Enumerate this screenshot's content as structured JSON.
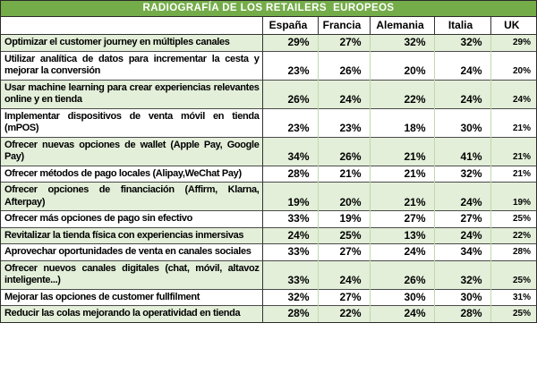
{
  "title": "RADIOGRAFÍA DE LOS RETAILERS  EUROPEOS",
  "colors": {
    "title_bar_bg": "#74AC49",
    "title_text": "#FFFFFF",
    "band_green": "#E3EFD9",
    "row_white": "#FFFFFF",
    "grid_dark": "#4A4A4A",
    "grid_dark_strong": "#333333",
    "grid_light": "#BFD9A9",
    "outer_border": "#2B2B2B",
    "header_text": "#000000",
    "cell_text": "#000000"
  },
  "table": {
    "columns": [
      "España",
      "Francia",
      "Alemania",
      "Italia",
      "UK"
    ],
    "rows": [
      {
        "label": "Optimizar el customer journey en múltiples canales",
        "values": [
          "29%",
          "27%",
          "32%",
          "32%",
          "29%"
        ]
      },
      {
        "label": "Utilizar analítica de datos para incrementar la cesta y mejorar la conversión",
        "values": [
          "23%",
          "26%",
          "20%",
          "24%",
          "20%"
        ]
      },
      {
        "label": "Usar machine learning para crear experiencias relevantes online y en tienda",
        "values": [
          "26%",
          "24%",
          "22%",
          "24%",
          "24%"
        ]
      },
      {
        "label": "Implementar dispositivos de venta móvil en tienda (mPOS)",
        "values": [
          "23%",
          "23%",
          "18%",
          "30%",
          "21%"
        ]
      },
      {
        "label": "Ofrecer nuevas opciones de wallet (Apple Pay, Google Pay)",
        "values": [
          "34%",
          "26%",
          "21%",
          "41%",
          "21%"
        ]
      },
      {
        "label": "Ofrecer métodos de pago locales (Alipay,WeChat Pay)",
        "values": [
          "28%",
          "21%",
          "21%",
          "32%",
          "21%"
        ]
      },
      {
        "label": "Ofrecer opciones de financiación (Affirm, Klarna, Afterpay)",
        "values": [
          "19%",
          "20%",
          "21%",
          "24%",
          "19%"
        ]
      },
      {
        "label": "Ofrecer más opciones de pago sin efectivo",
        "values": [
          "33%",
          "19%",
          "27%",
          "27%",
          "25%"
        ]
      },
      {
        "label": "Revitalizar la tienda física con experiencias inmersivas",
        "values": [
          "24%",
          "25%",
          "13%",
          "24%",
          "22%"
        ]
      },
      {
        "label": "Aprovechar oportunidades de venta en canales sociales",
        "values": [
          "33%",
          "27%",
          "24%",
          "34%",
          "28%"
        ]
      },
      {
        "label": "Ofrecer nuevos canales digitales (chat, móvil, altavoz inteligente...)",
        "values": [
          "33%",
          "24%",
          "26%",
          "32%",
          "25%"
        ]
      },
      {
        "label": "Mejorar las opciones de customer fullfilment",
        "values": [
          "32%",
          "27%",
          "30%",
          "30%",
          "31%"
        ]
      },
      {
        "label": "Reducir las colas mejorando la operatividad en tienda",
        "values": [
          "28%",
          "22%",
          "24%",
          "28%",
          "25%"
        ]
      }
    ]
  },
  "chart_data": {
    "type": "table",
    "title": "RADIOGRAFÍA DE LOS RETAILERS  EUROPEOS",
    "columns": [
      "España",
      "Francia",
      "Alemania",
      "Italia",
      "UK"
    ],
    "unit": "%",
    "rows": [
      {
        "label": "Optimizar el customer journey en múltiples canales",
        "values_pct": [
          29,
          27,
          32,
          32,
          29
        ]
      },
      {
        "label": "Utilizar analítica de datos para incrementar la cesta y mejorar la conversión",
        "values_pct": [
          23,
          26,
          20,
          24,
          20
        ]
      },
      {
        "label": "Usar machine learning para crear experiencias relevantes online y en tienda",
        "values_pct": [
          26,
          24,
          22,
          24,
          24
        ]
      },
      {
        "label": "Implementar dispositivos de venta móvil en tienda (mPOS)",
        "values_pct": [
          23,
          23,
          18,
          30,
          21
        ]
      },
      {
        "label": "Ofrecer nuevas opciones de wallet (Apple Pay, Google Pay)",
        "values_pct": [
          34,
          26,
          21,
          41,
          21
        ]
      },
      {
        "label": "Ofrecer métodos de pago locales (Alipay,WeChat Pay)",
        "values_pct": [
          28,
          21,
          21,
          32,
          21
        ]
      },
      {
        "label": "Ofrecer opciones de financiación (Affirm, Klarna, Afterpay)",
        "values_pct": [
          19,
          20,
          21,
          24,
          19
        ]
      },
      {
        "label": "Ofrecer más opciones de pago sin efectivo",
        "values_pct": [
          33,
          19,
          27,
          27,
          25
        ]
      },
      {
        "label": "Revitalizar la tienda física con experiencias inmersivas",
        "values_pct": [
          24,
          25,
          13,
          24,
          22
        ]
      },
      {
        "label": "Aprovechar oportunidades de venta en canales sociales",
        "values_pct": [
          33,
          27,
          24,
          34,
          28
        ]
      },
      {
        "label": "Ofrecer nuevos canales digitales (chat, móvil, altavoz inteligente...)",
        "values_pct": [
          33,
          24,
          26,
          32,
          25
        ]
      },
      {
        "label": "Mejorar las opciones de customer fullfilment",
        "values_pct": [
          32,
          27,
          30,
          30,
          31
        ]
      },
      {
        "label": "Reducir las colas mejorando la operatividad en tienda",
        "values_pct": [
          28,
          22,
          24,
          28,
          25
        ]
      }
    ]
  }
}
